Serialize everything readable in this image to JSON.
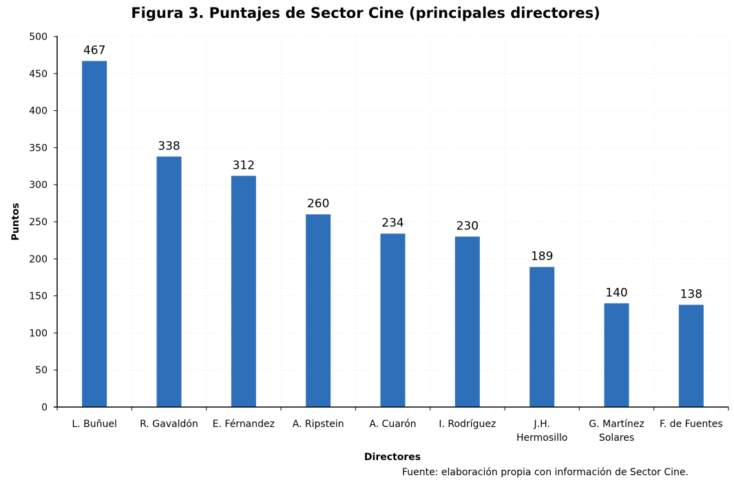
{
  "chart_data": {
    "type": "bar",
    "title": "Figura 3. Puntajes de Sector Cine (principales directores)",
    "xlabel": "Directores",
    "ylabel": "Puntos",
    "source": "Fuente: elaboración propia con información de Sector Cine.",
    "categories": [
      [
        "L. Buñuel"
      ],
      [
        "R. Gavaldón"
      ],
      [
        "E. Férnandez"
      ],
      [
        "A. Ripstein"
      ],
      [
        "A. Cuarón"
      ],
      [
        "I. Rodríguez"
      ],
      [
        "J.H.",
        "Hermosillo"
      ],
      [
        "G. Martínez",
        "Solares"
      ],
      [
        "F. de Fuentes"
      ]
    ],
    "values": [
      467,
      338,
      312,
      260,
      234,
      230,
      189,
      140,
      138
    ],
    "ylim": [
      0,
      500
    ],
    "yticks": [
      0,
      50,
      100,
      150,
      200,
      250,
      300,
      350,
      400,
      450,
      500
    ],
    "grid": true,
    "bar_color": "#2E6FBA",
    "data_labels": true
  }
}
